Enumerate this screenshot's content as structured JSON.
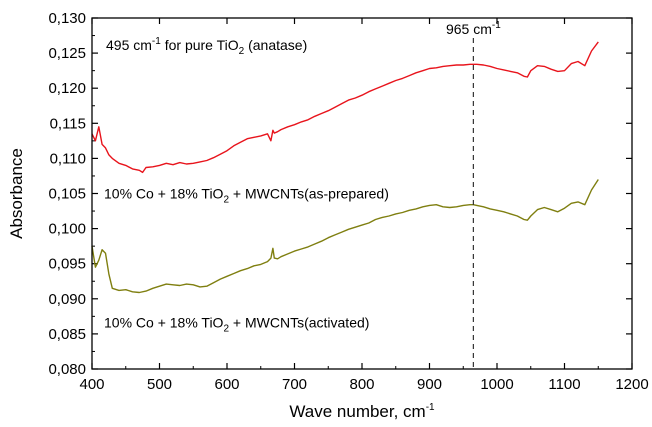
{
  "chart_data": {
    "type": "line",
    "xlabel": "Wave number, cm",
    "xlabel_sup": "-1",
    "ylabel": "Absorbance",
    "xlim": [
      400,
      1200
    ],
    "ylim": [
      0.08,
      0.13
    ],
    "xticks": [
      "400",
      "500",
      "600",
      "700",
      "800",
      "900",
      "1000",
      "1100",
      "1200"
    ],
    "yticks": [
      "0,080",
      "0,085",
      "0,090",
      "0,095",
      "0,100",
      "0,105",
      "0,110",
      "0,115",
      "0,120",
      "0,125",
      "0,130"
    ],
    "grid": false,
    "reference_line": {
      "x": 965,
      "label": "965 cm",
      "label_sup": "-1",
      "style": "dashed"
    },
    "annotation": {
      "part1": "495 cm",
      "sup": "-1",
      "part2": " for pure TiO",
      "sub": "2",
      "part3": " (anatase)"
    },
    "series": [
      {
        "label_part1": "10% Co + 18% TiO",
        "label_sub": "2",
        "label_part2": " + MWCNTs(as-prepared)",
        "color": "#e8141c",
        "x": [
          400,
          405,
          410,
          415,
          420,
          425,
          430,
          440,
          450,
          460,
          470,
          475,
          480,
          490,
          500,
          510,
          520,
          530,
          540,
          550,
          560,
          570,
          580,
          590,
          600,
          610,
          620,
          630,
          640,
          650,
          660,
          665,
          668,
          670,
          675,
          680,
          690,
          700,
          710,
          720,
          730,
          740,
          750,
          760,
          770,
          780,
          790,
          800,
          810,
          820,
          830,
          840,
          850,
          860,
          870,
          880,
          890,
          900,
          910,
          920,
          930,
          940,
          950,
          960,
          965,
          970,
          980,
          990,
          1000,
          1010,
          1020,
          1030,
          1040,
          1045,
          1050,
          1060,
          1070,
          1080,
          1090,
          1100,
          1110,
          1120,
          1130,
          1140,
          1150
        ],
        "y": [
          0.1135,
          0.1125,
          0.1145,
          0.112,
          0.1115,
          0.1105,
          0.11,
          0.1093,
          0.109,
          0.1085,
          0.1083,
          0.108,
          0.1087,
          0.1088,
          0.109,
          0.1093,
          0.1091,
          0.1094,
          0.1092,
          0.1093,
          0.1095,
          0.1097,
          0.1101,
          0.1106,
          0.1111,
          0.1118,
          0.1123,
          0.1128,
          0.113,
          0.1132,
          0.1135,
          0.1125,
          0.114,
          0.1136,
          0.1138,
          0.1141,
          0.1145,
          0.1148,
          0.1152,
          0.1155,
          0.116,
          0.1164,
          0.1168,
          0.1173,
          0.1178,
          0.1183,
          0.1186,
          0.119,
          0.1195,
          0.1199,
          0.1203,
          0.1207,
          0.1211,
          0.1214,
          0.1218,
          0.1222,
          0.1225,
          0.1228,
          0.1229,
          0.1231,
          0.1232,
          0.1233,
          0.1233,
          0.1234,
          0.1234,
          0.1234,
          0.1233,
          0.1231,
          0.1228,
          0.1226,
          0.1224,
          0.1222,
          0.1217,
          0.1216,
          0.1225,
          0.1232,
          0.1231,
          0.1227,
          0.1224,
          0.1225,
          0.1235,
          0.1238,
          0.1232,
          0.1253,
          0.1266
        ]
      },
      {
        "label_part1": "10% Co + 18% TiO",
        "label_sub": "2",
        "label_part2": " + MWCNTs(activated)",
        "color": "#7f7f10",
        "x": [
          400,
          405,
          410,
          415,
          420,
          425,
          430,
          440,
          450,
          460,
          470,
          480,
          490,
          500,
          510,
          520,
          530,
          540,
          550,
          560,
          570,
          580,
          590,
          600,
          610,
          620,
          630,
          640,
          650,
          660,
          665,
          668,
          670,
          675,
          680,
          690,
          700,
          710,
          720,
          730,
          740,
          750,
          760,
          770,
          780,
          790,
          800,
          810,
          820,
          830,
          840,
          850,
          860,
          870,
          880,
          890,
          900,
          910,
          920,
          930,
          940,
          950,
          960,
          965,
          970,
          980,
          990,
          1000,
          1010,
          1020,
          1030,
          1040,
          1045,
          1050,
          1060,
          1070,
          1080,
          1090,
          1100,
          1110,
          1120,
          1130,
          1140,
          1150
        ],
        "y": [
          0.0975,
          0.0945,
          0.0955,
          0.097,
          0.0965,
          0.0935,
          0.0915,
          0.0912,
          0.0913,
          0.091,
          0.0909,
          0.0911,
          0.0915,
          0.0918,
          0.0921,
          0.092,
          0.0919,
          0.0921,
          0.092,
          0.0917,
          0.0918,
          0.0923,
          0.0928,
          0.0932,
          0.0936,
          0.094,
          0.0943,
          0.0947,
          0.0949,
          0.0953,
          0.0958,
          0.0972,
          0.0958,
          0.0957,
          0.096,
          0.0964,
          0.0968,
          0.0971,
          0.0974,
          0.0978,
          0.0982,
          0.0987,
          0.0991,
          0.0995,
          0.0999,
          0.1002,
          0.1005,
          0.1008,
          0.1013,
          0.1016,
          0.1018,
          0.1021,
          0.1023,
          0.1026,
          0.1028,
          0.1031,
          0.1033,
          0.1034,
          0.1031,
          0.103,
          0.1031,
          0.1033,
          0.1034,
          0.1034,
          0.1033,
          0.1031,
          0.1028,
          0.1026,
          0.1024,
          0.1021,
          0.1018,
          0.1013,
          0.1012,
          0.1018,
          0.1027,
          0.103,
          0.1027,
          0.1024,
          0.1029,
          0.1036,
          0.1038,
          0.1034,
          0.1055,
          0.107
        ]
      }
    ]
  }
}
